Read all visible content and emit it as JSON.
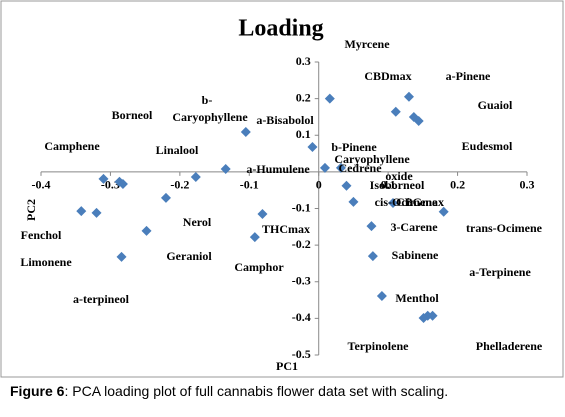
{
  "chart_data": {
    "type": "scatter",
    "title": "Loading",
    "x_label": "PC1",
    "y_label": "PC2",
    "color": "#4a7ebb",
    "x": [
      0.016,
      0.13,
      0.111,
      0.137,
      0.144,
      -0.105,
      -0.009,
      -0.134,
      -0.177,
      -0.31,
      -0.287,
      -0.282,
      0.009,
      0.032,
      0.04,
      0.05,
      0.107,
      0.18,
      -0.22,
      -0.342,
      -0.32,
      -0.081,
      -0.248,
      -0.092,
      0.076,
      -0.284,
      0.078,
      0.091,
      0.151,
      0.157,
      0.164
    ],
    "y": [
      0.2,
      0.205,
      0.164,
      0.15,
      0.139,
      0.109,
      0.068,
      0.008,
      -0.014,
      -0.019,
      -0.027,
      -0.033,
      0.011,
      0.011,
      -0.038,
      -0.082,
      -0.085,
      -0.109,
      -0.071,
      -0.107,
      -0.112,
      -0.115,
      -0.161,
      -0.178,
      -0.148,
      -0.232,
      -0.23,
      -0.339,
      -0.399,
      -0.393,
      -0.393
    ],
    "xlim": [
      -0.4,
      0.3
    ],
    "xticks": [
      -0.4,
      -0.3,
      -0.2,
      -0.1,
      0,
      0.1,
      0.2,
      0.3
    ],
    "ylim": [
      -0.5,
      0.3
    ],
    "yticks": [
      0.3,
      0.2,
      0.1,
      -0.1,
      -0.2,
      -0.3,
      -0.4,
      -0.5
    ],
    "annotations": [
      "Myrcene",
      "CBDmax",
      "a-Pinene",
      "Guaiol",
      "Borneol",
      "b-",
      "Caryophyllene",
      "a-Bisabolol",
      "Eudesmol",
      "Camphene",
      "Linalool",
      "b-Pinene",
      "Caryophyllene",
      "oxide",
      "Cedrene",
      "a-Humulene",
      "Isoborneol",
      "cis-Ocimene",
      "CBGmax",
      "Nerol",
      "THCmax",
      "3-Carene",
      "trans-Ocimene",
      "Fenchol",
      "Geraniol",
      "Sabinene",
      "Camphor",
      "Limonene",
      "a-Terpinene",
      "a-terpineol",
      "Menthol",
      "Terpinolene",
      "Phelladerene"
    ]
  },
  "caption": {
    "label": "Figure 6",
    "text": ": PCA loading plot of full cannabis flower data set with scaling."
  }
}
